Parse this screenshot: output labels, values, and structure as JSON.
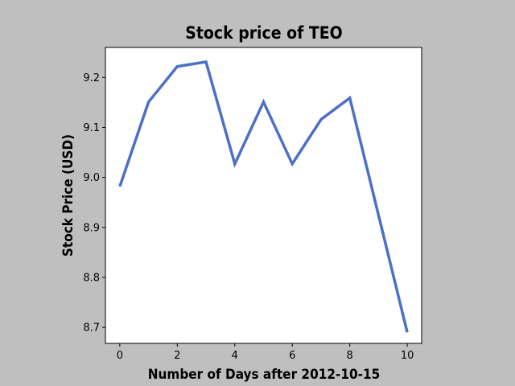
{
  "chart_data": {
    "type": "line",
    "title": "Stock price of TEO",
    "xlabel": "Number of Days after 2012-10-15",
    "ylabel": "Stock Price (USD)",
    "x": [
      0,
      1,
      2,
      3,
      4,
      5,
      6,
      7,
      8,
      10
    ],
    "series": [
      {
        "values": [
          8.982,
          9.151,
          9.222,
          9.231,
          9.027,
          9.151,
          9.027,
          9.116,
          9.159,
          8.69
        ],
        "color": "#4c6fc9"
      }
    ],
    "xlim": [
      -0.5,
      10.5
    ],
    "ylim": [
      8.668,
      9.26
    ],
    "xticks": [
      0,
      2,
      4,
      6,
      8,
      10
    ],
    "yticks": [
      8.7,
      8.8,
      8.9,
      9.0,
      9.1,
      9.2
    ],
    "grid": false,
    "legend": "none"
  }
}
